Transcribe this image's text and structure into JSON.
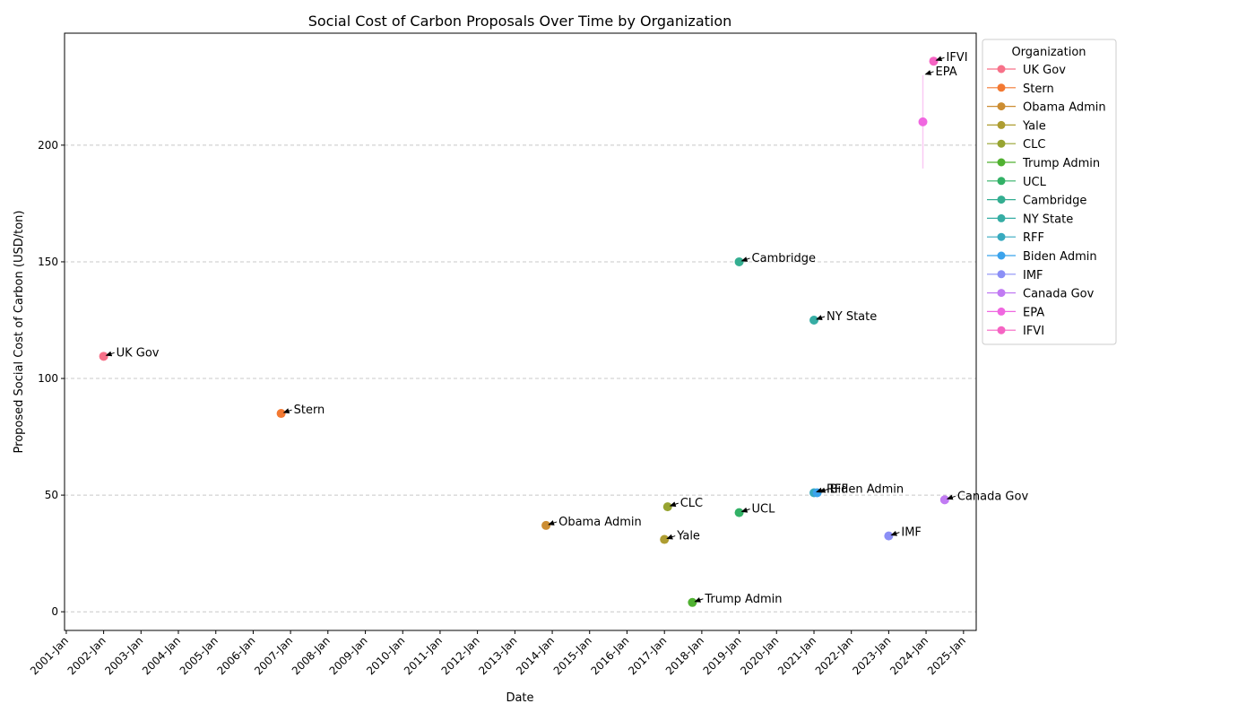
{
  "chart_data": {
    "type": "scatter",
    "title": "Social Cost of Carbon Proposals Over Time by Organization",
    "xlabel": "Date",
    "ylabel": "Proposed Social Cost of Carbon (USD/ton)",
    "xlim": [
      "2000-12-15",
      "2025-05-05"
    ],
    "ylim": [
      -8,
      248
    ],
    "y_ticks": [
      0,
      50,
      100,
      150,
      200
    ],
    "x_ticks": [
      {
        "date": "2001-01-01",
        "label": "2001-Jan"
      },
      {
        "date": "2002-01-01",
        "label": "2002-Jan"
      },
      {
        "date": "2003-01-01",
        "label": "2003-Jan"
      },
      {
        "date": "2004-01-01",
        "label": "2004-Jan"
      },
      {
        "date": "2005-01-01",
        "label": "2005-Jan"
      },
      {
        "date": "2006-01-01",
        "label": "2006-Jan"
      },
      {
        "date": "2007-01-01",
        "label": "2007-Jan"
      },
      {
        "date": "2008-01-01",
        "label": "2008-Jan"
      },
      {
        "date": "2009-01-01",
        "label": "2009-Jan"
      },
      {
        "date": "2010-01-01",
        "label": "2010-Jan"
      },
      {
        "date": "2011-01-01",
        "label": "2011-Jan"
      },
      {
        "date": "2012-01-01",
        "label": "2012-Jan"
      },
      {
        "date": "2013-01-01",
        "label": "2013-Jan"
      },
      {
        "date": "2014-01-01",
        "label": "2014-Jan"
      },
      {
        "date": "2015-01-01",
        "label": "2015-Jan"
      },
      {
        "date": "2016-01-01",
        "label": "2016-Jan"
      },
      {
        "date": "2017-01-01",
        "label": "2017-Jan"
      },
      {
        "date": "2018-01-01",
        "label": "2018-Jan"
      },
      {
        "date": "2019-01-01",
        "label": "2019-Jan"
      },
      {
        "date": "2020-01-01",
        "label": "2020-Jan"
      },
      {
        "date": "2021-01-01",
        "label": "2021-Jan"
      },
      {
        "date": "2022-01-01",
        "label": "2022-Jan"
      },
      {
        "date": "2023-01-01",
        "label": "2023-Jan"
      },
      {
        "date": "2024-01-01",
        "label": "2024-Jan"
      },
      {
        "date": "2025-01-01",
        "label": "2025-Jan"
      }
    ],
    "grid": "horizontal dashed",
    "legend": {
      "title": "Organization",
      "placement": "outside right"
    },
    "series": [
      {
        "name": "UK Gov",
        "color": "#f77189",
        "points": [
          {
            "x": "2002-01-01",
            "y": 109.5
          }
        ]
      },
      {
        "name": "Stern",
        "color": "#f37932",
        "points": [
          {
            "x": "2006-10-01",
            "y": 85
          }
        ]
      },
      {
        "name": "Obama Admin",
        "color": "#cc8d32",
        "points": [
          {
            "x": "2013-11-01",
            "y": 37
          }
        ]
      },
      {
        "name": "Yale",
        "color": "#ae9d31",
        "points": [
          {
            "x": "2017-01-01",
            "y": 31
          }
        ]
      },
      {
        "name": "CLC",
        "color": "#97a431",
        "points": [
          {
            "x": "2017-02-01",
            "y": 45
          }
        ]
      },
      {
        "name": "Trump Admin",
        "color": "#50b131",
        "points": [
          {
            "x": "2017-10-01",
            "y": 4
          }
        ]
      },
      {
        "name": "UCL",
        "color": "#32b166",
        "points": [
          {
            "x": "2019-01-01",
            "y": 42.5
          }
        ]
      },
      {
        "name": "Cambridge",
        "color": "#34ae91",
        "points": [
          {
            "x": "2019-01-01",
            "y": 150
          }
        ]
      },
      {
        "name": "NY State",
        "color": "#36ada4",
        "points": [
          {
            "x": "2021-01-01",
            "y": 125
          }
        ]
      },
      {
        "name": "RFF",
        "color": "#38aabf",
        "points": [
          {
            "x": "2021-01-01",
            "y": 51
          }
        ]
      },
      {
        "name": "Biden Admin",
        "color": "#3ba3ec",
        "points": [
          {
            "x": "2021-02-01",
            "y": 51
          }
        ]
      },
      {
        "name": "IMF",
        "color": "#8b8ff6",
        "points": [
          {
            "x": "2023-01-01",
            "y": 32.5
          }
        ]
      },
      {
        "name": "Canada Gov",
        "color": "#c17bf3",
        "points": [
          {
            "x": "2024-07-01",
            "y": 48
          }
        ]
      },
      {
        "name": "EPA",
        "color": "#f067e0",
        "points": [
          {
            "x": "2023-12-01",
            "y": 210
          }
        ],
        "range": [
          190,
          230
        ]
      },
      {
        "name": "IFVI",
        "color": "#f564c3",
        "points": [
          {
            "x": "2024-03-15",
            "y": 236
          }
        ]
      }
    ],
    "annotations": [
      {
        "text": "UK Gov",
        "series": "UK Gov"
      },
      {
        "text": "Stern",
        "series": "Stern"
      },
      {
        "text": "Obama Admin",
        "series": "Obama Admin"
      },
      {
        "text": "Yale",
        "series": "Yale"
      },
      {
        "text": "CLC",
        "series": "CLC"
      },
      {
        "text": "Trump Admin",
        "series": "Trump Admin"
      },
      {
        "text": "UCL",
        "series": "UCL"
      },
      {
        "text": "Cambridge",
        "series": "Cambridge"
      },
      {
        "text": "NY State",
        "series": "NY State"
      },
      {
        "text": "RFF",
        "series": "RFF"
      },
      {
        "text": "Biden Admin",
        "series": "Biden Admin"
      },
      {
        "text": "IMF",
        "series": "IMF"
      },
      {
        "text": "Canada Gov",
        "series": "Canada Gov"
      },
      {
        "text": "EPA",
        "series": "EPA",
        "anchor_y": 230
      },
      {
        "text": "IFVI",
        "series": "IFVI"
      }
    ]
  }
}
